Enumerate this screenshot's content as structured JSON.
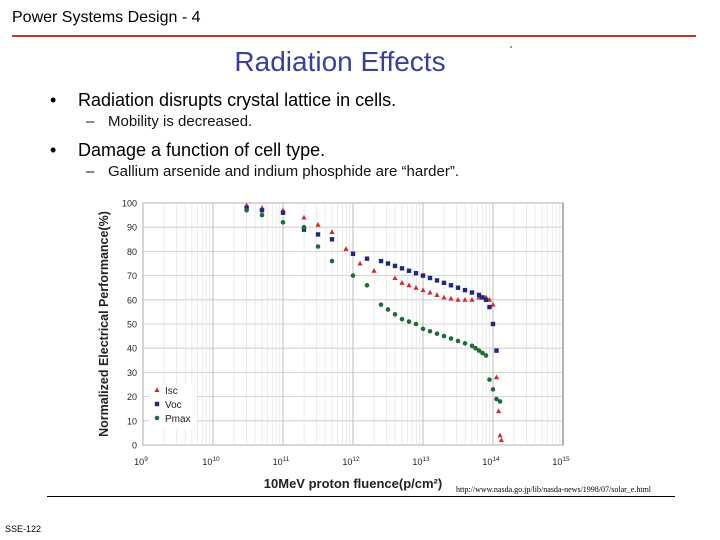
{
  "header": {
    "title": "Power Systems Design - 4"
  },
  "slide": {
    "title": "Radiation Effects",
    "bullets": [
      {
        "text": "Radiation disrupts crystal lattice in cells.",
        "sub": "Mobility is decreased."
      },
      {
        "text": "Damage a function of cell type.",
        "sub": "Gallium arsenide and indium phosphide are “harder”."
      }
    ]
  },
  "source": "http://www.nasda.go.jp/lib/nasda-news/1998/07/solar_e.html",
  "footer": "SSE-122",
  "colors": {
    "isc": "#d42a2a",
    "voc": "#1f2a7a",
    "pmax": "#1e6b3a",
    "title": "#3b3f9a",
    "rule": "#c0392b"
  },
  "chart_data": {
    "type": "scatter",
    "title": "",
    "xlabel": "10MeV proton fluence(p/cm²)",
    "ylabel": "Normalized Electrical Performance(%)",
    "xscale": "log",
    "xlim": [
      9,
      15
    ],
    "ylim": [
      0,
      100
    ],
    "x_tick_labels": [
      "10^9",
      "10^10",
      "10^11",
      "10^12",
      "10^13",
      "10^14",
      "10^15"
    ],
    "y_ticks": [
      0,
      10,
      20,
      30,
      40,
      50,
      60,
      70,
      80,
      90,
      100
    ],
    "legend": "bottom-left",
    "grid": true,
    "series": [
      {
        "name": "Isc",
        "marker": "triangle",
        "color": "#d42a2a",
        "log10_x": [
          10.48,
          10.7,
          11.0,
          11.3,
          11.5,
          11.7,
          11.9,
          12.1,
          12.3,
          12.6,
          12.7,
          12.8,
          12.9,
          13.0,
          13.1,
          13.2,
          13.3,
          13.4,
          13.5,
          13.6,
          13.7,
          13.8,
          13.9,
          13.95,
          14.0,
          14.05,
          14.08,
          14.1,
          14.12
        ],
        "y": [
          99,
          98,
          97,
          94,
          91,
          88,
          81,
          75,
          72,
          69,
          67,
          66,
          65,
          64,
          63,
          62,
          61,
          60.5,
          60,
          60,
          60,
          61,
          61,
          60,
          58,
          28,
          14,
          4,
          2
        ]
      },
      {
        "name": "Voc",
        "marker": "square",
        "color": "#1f2a7a",
        "log10_x": [
          10.48,
          10.7,
          11.0,
          11.3,
          11.5,
          11.7,
          12.0,
          12.2,
          12.4,
          12.5,
          12.6,
          12.7,
          12.8,
          12.9,
          13.0,
          13.1,
          13.2,
          13.3,
          13.4,
          13.5,
          13.6,
          13.7,
          13.8,
          13.85,
          13.9,
          13.95,
          14.0,
          14.05
        ],
        "y": [
          98,
          97,
          96,
          89,
          87,
          85,
          79,
          77,
          76,
          75,
          74,
          73,
          72,
          71,
          70,
          69,
          68,
          67,
          66,
          65,
          64,
          63,
          62,
          61,
          60,
          57,
          50,
          39
        ]
      },
      {
        "name": "Pmax",
        "marker": "circle",
        "color": "#1e6b3a",
        "log10_x": [
          10.48,
          10.7,
          11.0,
          11.3,
          11.5,
          11.7,
          12.0,
          12.2,
          12.4,
          12.5,
          12.6,
          12.7,
          12.8,
          12.9,
          13.0,
          13.1,
          13.2,
          13.3,
          13.4,
          13.5,
          13.6,
          13.7,
          13.75,
          13.8,
          13.85,
          13.9,
          13.95,
          14.0,
          14.05,
          14.1
        ],
        "y": [
          97,
          95,
          92,
          90,
          82,
          76,
          70,
          66,
          58,
          56,
          54,
          52,
          51,
          50,
          48,
          47,
          46,
          45,
          44,
          43,
          42,
          41,
          40,
          39,
          38,
          37,
          27,
          23,
          19,
          18
        ]
      }
    ]
  }
}
